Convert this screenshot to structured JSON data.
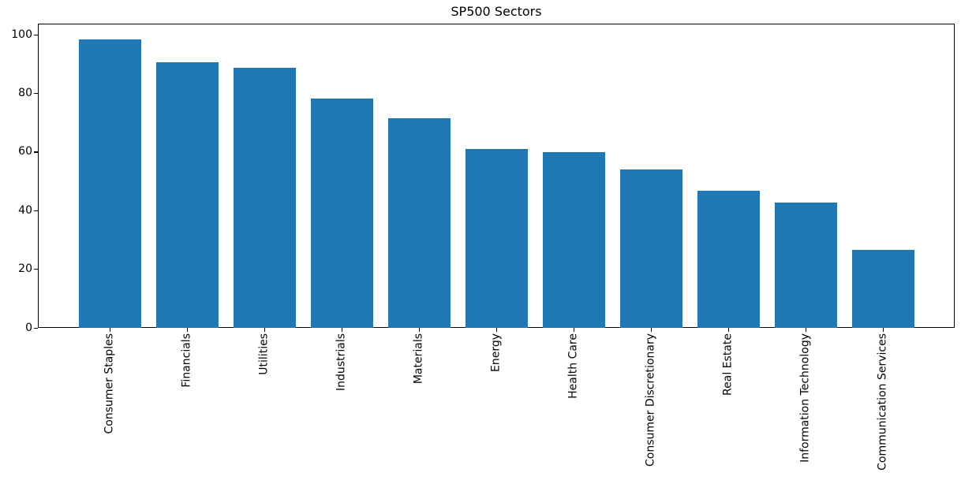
{
  "chart_data": {
    "type": "bar",
    "title": "SP500 Sectors",
    "xlabel": "",
    "ylabel": "",
    "categories": [
      "Consumer Staples",
      "Financials",
      "Utilities",
      "Industrials",
      "Materials",
      "Energy",
      "Health Care",
      "Consumer Discretionary",
      "Real Estate",
      "Information Technology",
      "Communication Services"
    ],
    "values": [
      98.4,
      90.6,
      88.7,
      78.3,
      71.6,
      61.0,
      60.1,
      54.0,
      46.9,
      42.8,
      26.6
    ],
    "yticks": [
      0,
      20,
      40,
      60,
      80,
      100
    ],
    "ylim": [
      0,
      103.8
    ],
    "x_tick_rotation": 90,
    "grid": false,
    "legend": false,
    "bar_color": "#1f77b4",
    "axis_color": "#000000",
    "text_color": "#000000",
    "background_color": "#ffffff"
  }
}
